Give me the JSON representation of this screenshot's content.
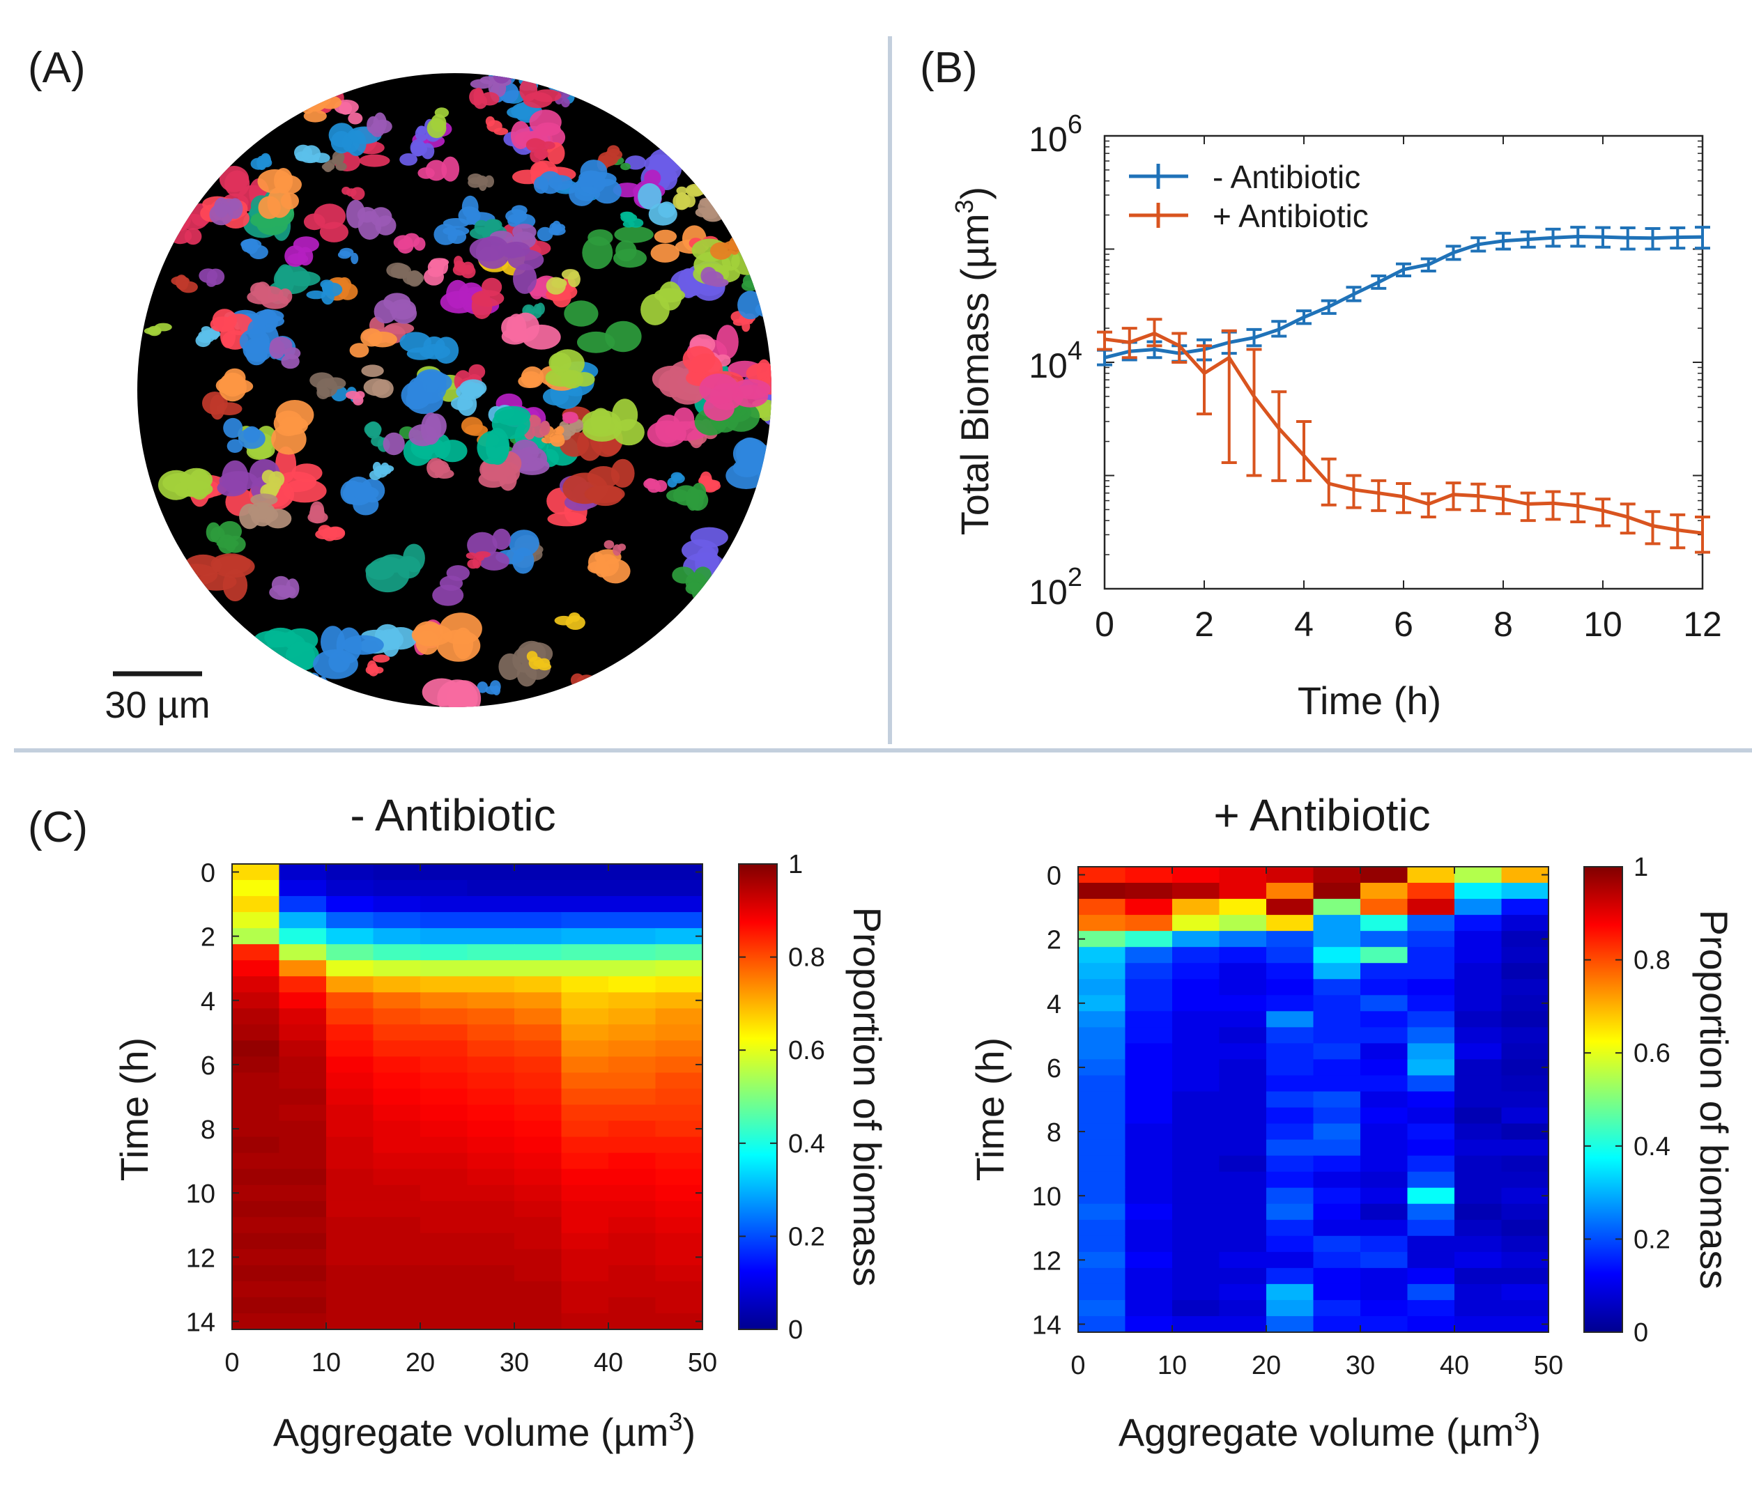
{
  "panel_labels": [
    "(A)",
    "(B)",
    "(C)"
  ],
  "image_panel": {
    "scale_bar_label": "30 µm",
    "background_color": "#000000",
    "blob_palette": [
      "#e0315b",
      "#2d9c3c",
      "#b51fc1",
      "#1f8fd6",
      "#f0c419",
      "#e67e22",
      "#8e44ad",
      "#16a085",
      "#d35d7a",
      "#7f6b5e",
      "#5bc0eb",
      "#f86ba0",
      "#a3d13a",
      "#c0392b",
      "#9b59b6",
      "#27ae60",
      "#e84393",
      "#00b894",
      "#fd9644",
      "#6c5ce7",
      "#b38f7a",
      "#cdd14c",
      "#ff4757",
      "#2e86de"
    ]
  },
  "chart_data": [
    {
      "type": "line",
      "title": "",
      "xlabel": "Time (h)",
      "ylabel": "Total Biomass (µm³)",
      "ylabel_base": "Total Biomass (µm",
      "ylabel_sup": "3",
      "ylabel_close": ")",
      "yscale": "log",
      "xlim": [
        0,
        12
      ],
      "ylim": [
        100,
        1000000
      ],
      "xticks": [
        0,
        2,
        4,
        6,
        8,
        10,
        12
      ],
      "xtick_labels": [
        "0",
        "2",
        "4",
        "6",
        "8",
        "10",
        "12"
      ],
      "yticks": [
        100,
        10000,
        1000000
      ],
      "ytick_labels": [
        {
          "base": "10",
          "exp": "2"
        },
        {
          "base": "10",
          "exp": "4"
        },
        {
          "base": "10",
          "exp": "6"
        }
      ],
      "legend_position": "top-left",
      "x": [
        0,
        0.5,
        1,
        1.5,
        2,
        2.5,
        3,
        3.5,
        4,
        4.5,
        5,
        5.5,
        6,
        6.5,
        7,
        7.5,
        8,
        8.5,
        9,
        9.5,
        10,
        10.5,
        11,
        11.5,
        12
      ],
      "series": [
        {
          "name": "- Antibiotic",
          "color": "#1f72b8",
          "values": [
            11000,
            12500,
            13000,
            12000,
            13000,
            15000,
            16500,
            19500,
            25000,
            31000,
            40000,
            51000,
            66000,
            73000,
            93000,
            110000,
            118000,
            122000,
            126000,
            129000,
            128000,
            126000,
            125000,
            127000,
            128000
          ],
          "err_low": [
            9500,
            10500,
            11000,
            10200,
            10500,
            12000,
            14000,
            17000,
            22000,
            27000,
            35000,
            45000,
            58000,
            64000,
            81000,
            96000,
            100000,
            104000,
            106000,
            106000,
            104000,
            100000,
            100000,
            102000,
            102000
          ],
          "err_high": [
            12800,
            15000,
            15200,
            14000,
            15800,
            18500,
            19500,
            23000,
            28500,
            35000,
            46000,
            58000,
            74000,
            82000,
            106000,
            126000,
            138000,
            142000,
            150000,
            156000,
            155000,
            154000,
            152000,
            154000,
            156000
          ]
        },
        {
          "name": "+ Antibiotic",
          "color": "#d9541f",
          "values": [
            16000,
            15000,
            18000,
            14000,
            8000,
            11000,
            5000,
            2600,
            1500,
            850,
            750,
            700,
            650,
            560,
            680,
            660,
            620,
            560,
            570,
            540,
            490,
            430,
            360,
            330,
            310
          ],
          "err_low": [
            13000,
            11000,
            14000,
            10000,
            3500,
            1300,
            1000,
            900,
            900,
            550,
            520,
            490,
            470,
            430,
            500,
            490,
            460,
            400,
            410,
            390,
            360,
            310,
            250,
            230,
            210
          ],
          "err_high": [
            18500,
            20000,
            24000,
            18000,
            14000,
            19000,
            13000,
            5500,
            3000,
            1400,
            1000,
            900,
            850,
            690,
            860,
            840,
            800,
            700,
            720,
            690,
            620,
            560,
            480,
            450,
            430
          ]
        }
      ]
    },
    {
      "type": "heatmap",
      "title": "- Antibiotic",
      "xlabel": "Aggregate volume (µm³)",
      "xlabel_base": "Aggregate volume (µm",
      "xlabel_sup": "3",
      "xlabel_close": ")",
      "ylabel": "Time (h)",
      "colorbar_label": "Proportion of biomass",
      "colormap": "jet",
      "clim": [
        0,
        1
      ],
      "x_edges_range": [
        0,
        50
      ],
      "y_edges_range": [
        -0.25,
        14.25
      ],
      "xticks": [
        0,
        10,
        20,
        30,
        40,
        50
      ],
      "yticks": [
        0,
        2,
        4,
        6,
        8,
        10,
        12,
        14
      ],
      "colorbar_ticks": [
        "0",
        "0.2",
        "0.4",
        "0.6",
        "0.8",
        "1"
      ],
      "z": [
        [
          0.66,
          0.07,
          0.05,
          0.04,
          0.04,
          0.04,
          0.04,
          0.04,
          0.04,
          0.04
        ],
        [
          0.62,
          0.1,
          0.07,
          0.06,
          0.06,
          0.05,
          0.05,
          0.05,
          0.05,
          0.05
        ],
        [
          0.66,
          0.18,
          0.12,
          0.1,
          0.09,
          0.09,
          0.09,
          0.09,
          0.09,
          0.09
        ],
        [
          0.6,
          0.3,
          0.22,
          0.2,
          0.19,
          0.19,
          0.19,
          0.2,
          0.2,
          0.2
        ],
        [
          0.55,
          0.4,
          0.33,
          0.3,
          0.29,
          0.29,
          0.29,
          0.3,
          0.3,
          0.31
        ],
        [
          0.84,
          0.56,
          0.47,
          0.44,
          0.43,
          0.44,
          0.44,
          0.45,
          0.45,
          0.46
        ],
        [
          0.88,
          0.74,
          0.6,
          0.58,
          0.57,
          0.57,
          0.57,
          0.57,
          0.57,
          0.58
        ],
        [
          0.91,
          0.84,
          0.72,
          0.7,
          0.69,
          0.69,
          0.68,
          0.65,
          0.64,
          0.65
        ],
        [
          0.93,
          0.88,
          0.8,
          0.77,
          0.75,
          0.74,
          0.73,
          0.68,
          0.69,
          0.7
        ],
        [
          0.95,
          0.91,
          0.82,
          0.8,
          0.79,
          0.78,
          0.76,
          0.7,
          0.71,
          0.73
        ],
        [
          0.96,
          0.92,
          0.85,
          0.82,
          0.82,
          0.8,
          0.79,
          0.72,
          0.73,
          0.74
        ],
        [
          0.98,
          0.94,
          0.86,
          0.84,
          0.84,
          0.82,
          0.81,
          0.74,
          0.75,
          0.76
        ],
        [
          0.97,
          0.95,
          0.88,
          0.86,
          0.85,
          0.84,
          0.83,
          0.76,
          0.77,
          0.78
        ],
        [
          0.96,
          0.95,
          0.89,
          0.87,
          0.86,
          0.85,
          0.84,
          0.78,
          0.78,
          0.8
        ],
        [
          0.96,
          0.96,
          0.9,
          0.88,
          0.87,
          0.86,
          0.85,
          0.8,
          0.8,
          0.81
        ],
        [
          0.96,
          0.95,
          0.91,
          0.89,
          0.88,
          0.87,
          0.86,
          0.82,
          0.82,
          0.82
        ],
        [
          0.96,
          0.96,
          0.91,
          0.9,
          0.89,
          0.88,
          0.87,
          0.83,
          0.84,
          0.83
        ],
        [
          0.97,
          0.96,
          0.92,
          0.9,
          0.9,
          0.89,
          0.88,
          0.85,
          0.85,
          0.85
        ],
        [
          0.96,
          0.96,
          0.92,
          0.91,
          0.91,
          0.9,
          0.89,
          0.86,
          0.87,
          0.86
        ],
        [
          0.97,
          0.97,
          0.93,
          0.92,
          0.92,
          0.91,
          0.9,
          0.88,
          0.88,
          0.87
        ],
        [
          0.96,
          0.96,
          0.93,
          0.93,
          0.92,
          0.92,
          0.91,
          0.89,
          0.89,
          0.88
        ],
        [
          0.97,
          0.97,
          0.93,
          0.93,
          0.93,
          0.93,
          0.92,
          0.9,
          0.9,
          0.89
        ],
        [
          0.96,
          0.96,
          0.94,
          0.94,
          0.93,
          0.93,
          0.93,
          0.9,
          0.91,
          0.9
        ],
        [
          0.97,
          0.97,
          0.94,
          0.94,
          0.94,
          0.94,
          0.93,
          0.91,
          0.92,
          0.91
        ],
        [
          0.96,
          0.96,
          0.94,
          0.94,
          0.94,
          0.94,
          0.94,
          0.92,
          0.92,
          0.91
        ],
        [
          0.97,
          0.97,
          0.95,
          0.95,
          0.95,
          0.95,
          0.94,
          0.92,
          0.93,
          0.92
        ],
        [
          0.96,
          0.96,
          0.95,
          0.95,
          0.95,
          0.95,
          0.95,
          0.93,
          0.93,
          0.93
        ],
        [
          0.97,
          0.97,
          0.95,
          0.95,
          0.95,
          0.95,
          0.95,
          0.93,
          0.94,
          0.93
        ],
        [
          0.96,
          0.96,
          0.95,
          0.95,
          0.95,
          0.95,
          0.95,
          0.94,
          0.94,
          0.94
        ]
      ]
    },
    {
      "type": "heatmap",
      "title": "+ Antibiotic",
      "xlabel": "Aggregate volume (µm³)",
      "xlabel_base": "Aggregate volume (µm",
      "xlabel_sup": "3",
      "xlabel_close": ")",
      "ylabel": "Time (h)",
      "colorbar_label": "Proportion of biomass",
      "colormap": "jet",
      "clim": [
        0,
        1
      ],
      "x_edges_range": [
        0,
        50
      ],
      "y_edges_range": [
        -0.25,
        14.25
      ],
      "xticks": [
        0,
        10,
        20,
        30,
        40,
        50
      ],
      "yticks": [
        0,
        2,
        4,
        6,
        8,
        10,
        12,
        14
      ],
      "colorbar_ticks": [
        "0",
        "0.2",
        "0.4",
        "0.6",
        "0.8",
        "1"
      ],
      "z": [
        [
          0.84,
          0.86,
          0.88,
          0.9,
          0.92,
          0.96,
          0.98,
          0.68,
          0.55,
          0.7
        ],
        [
          0.98,
          0.97,
          0.95,
          0.9,
          0.75,
          0.98,
          0.72,
          0.82,
          0.36,
          0.32
        ],
        [
          0.8,
          0.88,
          0.7,
          0.64,
          0.96,
          0.5,
          0.78,
          0.92,
          0.26,
          0.14
        ],
        [
          0.76,
          0.78,
          0.6,
          0.55,
          0.66,
          0.28,
          0.4,
          0.22,
          0.14,
          0.08
        ],
        [
          0.48,
          0.42,
          0.28,
          0.24,
          0.2,
          0.28,
          0.22,
          0.18,
          0.1,
          0.05
        ],
        [
          0.32,
          0.22,
          0.16,
          0.14,
          0.18,
          0.36,
          0.45,
          0.16,
          0.1,
          0.06
        ],
        [
          0.3,
          0.18,
          0.14,
          0.1,
          0.14,
          0.3,
          0.16,
          0.16,
          0.08,
          0.04
        ],
        [
          0.28,
          0.16,
          0.12,
          0.1,
          0.12,
          0.18,
          0.14,
          0.12,
          0.08,
          0.06
        ],
        [
          0.3,
          0.16,
          0.12,
          0.12,
          0.14,
          0.16,
          0.2,
          0.14,
          0.08,
          0.05
        ],
        [
          0.26,
          0.14,
          0.1,
          0.1,
          0.26,
          0.16,
          0.14,
          0.18,
          0.06,
          0.04
        ],
        [
          0.24,
          0.14,
          0.1,
          0.08,
          0.18,
          0.16,
          0.16,
          0.22,
          0.08,
          0.06
        ],
        [
          0.24,
          0.12,
          0.1,
          0.1,
          0.16,
          0.18,
          0.1,
          0.28,
          0.1,
          0.05
        ],
        [
          0.22,
          0.12,
          0.1,
          0.08,
          0.16,
          0.14,
          0.12,
          0.3,
          0.06,
          0.04
        ],
        [
          0.2,
          0.12,
          0.1,
          0.08,
          0.14,
          0.14,
          0.14,
          0.2,
          0.06,
          0.05
        ],
        [
          0.2,
          0.12,
          0.08,
          0.08,
          0.18,
          0.2,
          0.1,
          0.12,
          0.06,
          0.06
        ],
        [
          0.2,
          0.12,
          0.08,
          0.08,
          0.14,
          0.18,
          0.12,
          0.1,
          0.04,
          0.08
        ],
        [
          0.2,
          0.1,
          0.08,
          0.08,
          0.16,
          0.22,
          0.1,
          0.14,
          0.06,
          0.04
        ],
        [
          0.2,
          0.1,
          0.08,
          0.08,
          0.2,
          0.2,
          0.1,
          0.12,
          0.08,
          0.08
        ],
        [
          0.2,
          0.1,
          0.08,
          0.06,
          0.16,
          0.14,
          0.1,
          0.16,
          0.06,
          0.05
        ],
        [
          0.2,
          0.1,
          0.08,
          0.08,
          0.14,
          0.1,
          0.08,
          0.2,
          0.06,
          0.06
        ],
        [
          0.2,
          0.1,
          0.08,
          0.08,
          0.2,
          0.14,
          0.1,
          0.38,
          0.06,
          0.08
        ],
        [
          0.22,
          0.12,
          0.08,
          0.08,
          0.22,
          0.12,
          0.06,
          0.22,
          0.04,
          0.06
        ],
        [
          0.2,
          0.1,
          0.08,
          0.08,
          0.16,
          0.1,
          0.1,
          0.18,
          0.06,
          0.04
        ],
        [
          0.2,
          0.1,
          0.08,
          0.08,
          0.14,
          0.18,
          0.16,
          0.08,
          0.08,
          0.06
        ],
        [
          0.22,
          0.12,
          0.08,
          0.1,
          0.1,
          0.16,
          0.18,
          0.08,
          0.1,
          0.08
        ],
        [
          0.2,
          0.1,
          0.08,
          0.08,
          0.16,
          0.12,
          0.1,
          0.12,
          0.06,
          0.06
        ],
        [
          0.2,
          0.1,
          0.08,
          0.1,
          0.3,
          0.12,
          0.1,
          0.2,
          0.08,
          0.1
        ],
        [
          0.22,
          0.1,
          0.06,
          0.08,
          0.28,
          0.16,
          0.12,
          0.14,
          0.08,
          0.08
        ],
        [
          0.2,
          0.12,
          0.1,
          0.1,
          0.22,
          0.14,
          0.14,
          0.12,
          0.1,
          0.1
        ]
      ]
    }
  ]
}
